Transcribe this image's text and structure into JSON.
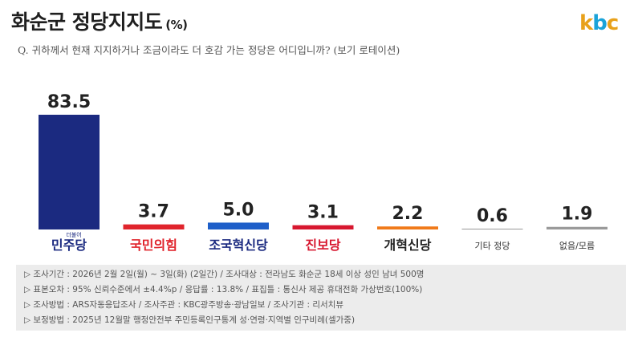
{
  "title": "화순군 정당지지도",
  "title_unit": "(%)",
  "question": "Q. 귀하께서 현재 지지하거나 조금이라도 더 호감 가는 정당은 어디입니까? (보기 로테이션)",
  "logo": {
    "k": "k",
    "b": "b",
    "c": "c"
  },
  "chart_data": {
    "type": "bar",
    "categories": [
      "민주당",
      "국민의힘",
      "조국혁신당",
      "진보당",
      "개혁신당",
      "기타 정당",
      "없음/모름"
    ],
    "category_prefix": [
      "더불어",
      "",
      "",
      "",
      "",
      "",
      ""
    ],
    "values": [
      83.5,
      3.7,
      5.0,
      3.1,
      2.2,
      0.6,
      1.9
    ],
    "value_labels": [
      "83.5",
      "3.7",
      "5.0",
      "3.1",
      "2.2",
      "0.6",
      "1.9"
    ],
    "colors": [
      "#1b2a80",
      "#e0242c",
      "#1e5fc9",
      "#d7172f",
      "#f07a1a",
      "#9a9a9a",
      "#9a9a9a"
    ],
    "label_colors": [
      "#1b2a80",
      "#e0242c",
      "#1b2a80",
      "#d7172f",
      "#222222",
      "#333333",
      "#333333"
    ],
    "ylim": [
      0,
      100
    ],
    "grid": false,
    "legend": "none"
  },
  "notes": [
    "▷ 조사기간 : 2026년 2월 2일(월) ~ 3일(화) (2일간) / 조사대상 : 전라남도 화순군 18세 이상 성인 남녀 500명",
    "▷ 표본오차 : 95% 신뢰수준에서 ±4.4%p / 응답률 : 13.8% / 표집틀 : 통신사 제공 휴대전화 가상번호(100%)",
    "▷ 조사방법 : ARS자동응답조사 / 조사주관 : KBC광주방송·광남일보 / 조사기관 : 리서치뷰",
    "▷ 보정방법 : 2025년 12월말 행정안전부 주민등록인구통계 성·연령·지역별 인구비례(셀가중)"
  ]
}
